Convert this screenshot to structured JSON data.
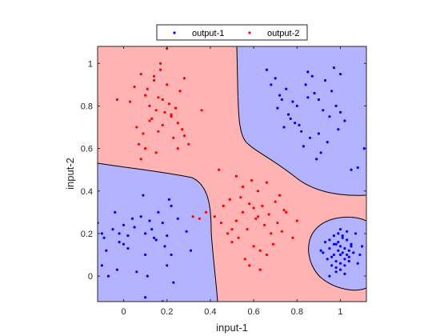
{
  "chart_data": {
    "type": "scatter",
    "title": "",
    "xlabel": "input-1",
    "ylabel": "input-2",
    "xlim": [
      -0.12,
      1.12
    ],
    "ylim": [
      -0.12,
      1.08
    ],
    "xticks": [
      0,
      0.2,
      0.4,
      0.6,
      0.8,
      1
    ],
    "xtick_labels": [
      "0",
      "0.2",
      "0.4",
      "0.6",
      "0.8",
      "1"
    ],
    "yticks": [
      0,
      0.2,
      0.4,
      0.6,
      0.8,
      1
    ],
    "ytick_labels": [
      "0",
      "0.2",
      "0.4",
      "0.6",
      "0.8",
      "1"
    ],
    "grid": false,
    "legend": {
      "placement": "top-center",
      "orientation": "horizontal"
    },
    "background_regions": [
      {
        "class": "output-1",
        "color": "#b3b3ff"
      },
      {
        "class": "output-2",
        "color": "#ffb3b3"
      }
    ],
    "series": [
      {
        "name": "output-1",
        "color": "#0000ff",
        "x": [
          -0.12,
          -0.09,
          -0.05,
          -0.02,
          0.0,
          0.02,
          -0.04,
          0.05,
          -0.1,
          -0.02,
          0.04,
          0.0,
          0.08,
          -0.08,
          0.1,
          0.13,
          0.15,
          0.18,
          0.2,
          0.16,
          0.12,
          0.22,
          0.25,
          0.19,
          0.14,
          0.21,
          0.09,
          0.1,
          0.2,
          0.22,
          -0.07,
          -0.03,
          0.06,
          0.02,
          -0.1,
          0.29,
          0.31,
          0.11,
          0.23,
          0.18,
          0.1,
          0.68,
          0.7,
          0.72,
          0.75,
          0.78,
          0.8,
          0.85,
          0.88,
          0.9,
          0.92,
          0.95,
          0.98,
          1.0,
          1.02,
          0.74,
          0.79,
          0.82,
          0.86,
          0.9,
          0.94,
          0.99,
          0.84,
          0.87,
          0.93,
          0.96,
          0.76,
          0.71,
          0.77,
          0.81,
          0.83,
          0.91,
          0.89,
          1.05,
          1.08,
          1.11,
          0.66,
          0.73,
          1.0,
          0.97,
          0.85,
          0.92,
          0.95,
          0.97,
          0.98,
          0.99,
          1.0,
          1.01,
          1.02,
          1.03,
          1.04,
          1.05,
          0.94,
          0.96,
          0.98,
          1.0,
          1.02,
          1.04,
          1.06,
          0.93,
          0.95,
          0.97,
          0.99,
          1.01,
          1.03,
          1.05,
          0.96,
          0.98,
          1.0,
          1.02,
          1.04,
          0.97,
          0.99,
          1.01,
          1.03,
          0.98,
          1.0,
          1.02,
          0.91,
          1.07,
          1.09,
          1.1,
          0.95,
          1.08,
          1.0
        ],
        "y": [
          0.25,
          0.18,
          0.22,
          0.2,
          0.24,
          0.19,
          0.3,
          0.23,
          0.05,
          0.16,
          0.27,
          0.15,
          0.28,
          0.12,
          0.2,
          0.22,
          0.17,
          0.25,
          0.19,
          0.3,
          0.26,
          0.33,
          0.27,
          0.14,
          0.18,
          0.36,
          0.38,
          0.1,
          0.05,
          0.1,
          0.0,
          0.03,
          0.02,
          0.13,
          0.2,
          0.21,
          0.12,
          0.0,
          -0.03,
          -0.12,
          -0.1,
          0.9,
          0.93,
          0.85,
          0.88,
          0.82,
          0.8,
          0.84,
          0.86,
          0.83,
          0.78,
          0.75,
          0.8,
          0.77,
          0.73,
          0.7,
          0.72,
          0.68,
          0.65,
          0.67,
          0.63,
          0.69,
          0.9,
          0.94,
          0.92,
          0.87,
          0.76,
          0.79,
          0.74,
          0.71,
          0.61,
          0.58,
          0.55,
          0.5,
          0.51,
          0.6,
          0.97,
          0.83,
          0.95,
          0.98,
          0.96,
          0.11,
          0.13,
          0.1,
          0.15,
          0.12,
          0.14,
          0.11,
          0.13,
          0.1,
          0.12,
          0.14,
          0.08,
          0.09,
          0.07,
          0.1,
          0.08,
          0.09,
          0.11,
          0.16,
          0.17,
          0.15,
          0.16,
          0.18,
          0.17,
          0.15,
          0.05,
          0.04,
          0.06,
          0.05,
          0.07,
          0.19,
          0.2,
          0.19,
          0.21,
          0.02,
          0.03,
          0.01,
          0.12,
          0.2,
          0.1,
          0.14,
          0.0,
          0.06,
          0.22
        ]
      },
      {
        "name": "output-2",
        "color": "#ff0000",
        "x": [
          0.1,
          0.12,
          0.15,
          0.18,
          0.2,
          0.22,
          0.25,
          0.03,
          0.06,
          0.09,
          0.13,
          0.16,
          0.19,
          0.23,
          0.26,
          0.28,
          0.08,
          0.11,
          0.14,
          0.17,
          0.21,
          0.24,
          0.27,
          0.05,
          0.07,
          0.1,
          0.15,
          0.18,
          0.22,
          0.25,
          0.2,
          0.17,
          0.14,
          0.12,
          -0.03,
          0.28,
          0.3,
          0.36,
          0.08,
          0.26,
          0.16,
          0.38,
          0.42,
          0.45,
          0.48,
          0.5,
          0.52,
          0.55,
          0.58,
          0.6,
          0.62,
          0.65,
          0.68,
          0.7,
          0.72,
          0.75,
          0.5,
          0.53,
          0.57,
          0.6,
          0.63,
          0.66,
          0.69,
          0.55,
          0.59,
          0.62,
          0.46,
          0.49,
          0.54,
          0.61,
          0.64,
          0.67,
          0.71,
          0.73,
          0.78,
          0.8,
          0.44,
          0.52,
          0.56,
          0.58,
          0.63,
          0.32,
          0.35,
          0.66,
          0.74
        ],
        "y": [
          0.85,
          0.8,
          0.78,
          0.83,
          0.9,
          0.75,
          0.72,
          0.82,
          0.7,
          0.67,
          0.74,
          0.68,
          0.77,
          0.65,
          0.87,
          0.93,
          0.95,
          0.88,
          0.92,
          0.97,
          0.81,
          0.79,
          0.69,
          0.89,
          0.62,
          0.6,
          0.58,
          0.71,
          0.76,
          0.6,
          1.07,
          1.0,
          0.94,
          0.73,
          0.83,
          0.66,
          0.62,
          0.78,
          0.55,
          0.87,
          0.84,
          0.3,
          0.28,
          0.25,
          0.2,
          0.22,
          0.26,
          0.3,
          0.34,
          0.32,
          0.28,
          0.24,
          0.2,
          0.35,
          0.38,
          0.3,
          0.16,
          0.18,
          0.22,
          0.14,
          0.12,
          0.1,
          0.15,
          0.42,
          0.45,
          0.4,
          0.33,
          0.36,
          0.37,
          0.27,
          0.33,
          0.29,
          0.25,
          0.21,
          0.18,
          0.26,
          0.5,
          0.47,
          0.08,
          0.05,
          0.03,
          0.28,
          0.27,
          0.44,
          0.31
        ]
      }
    ]
  }
}
